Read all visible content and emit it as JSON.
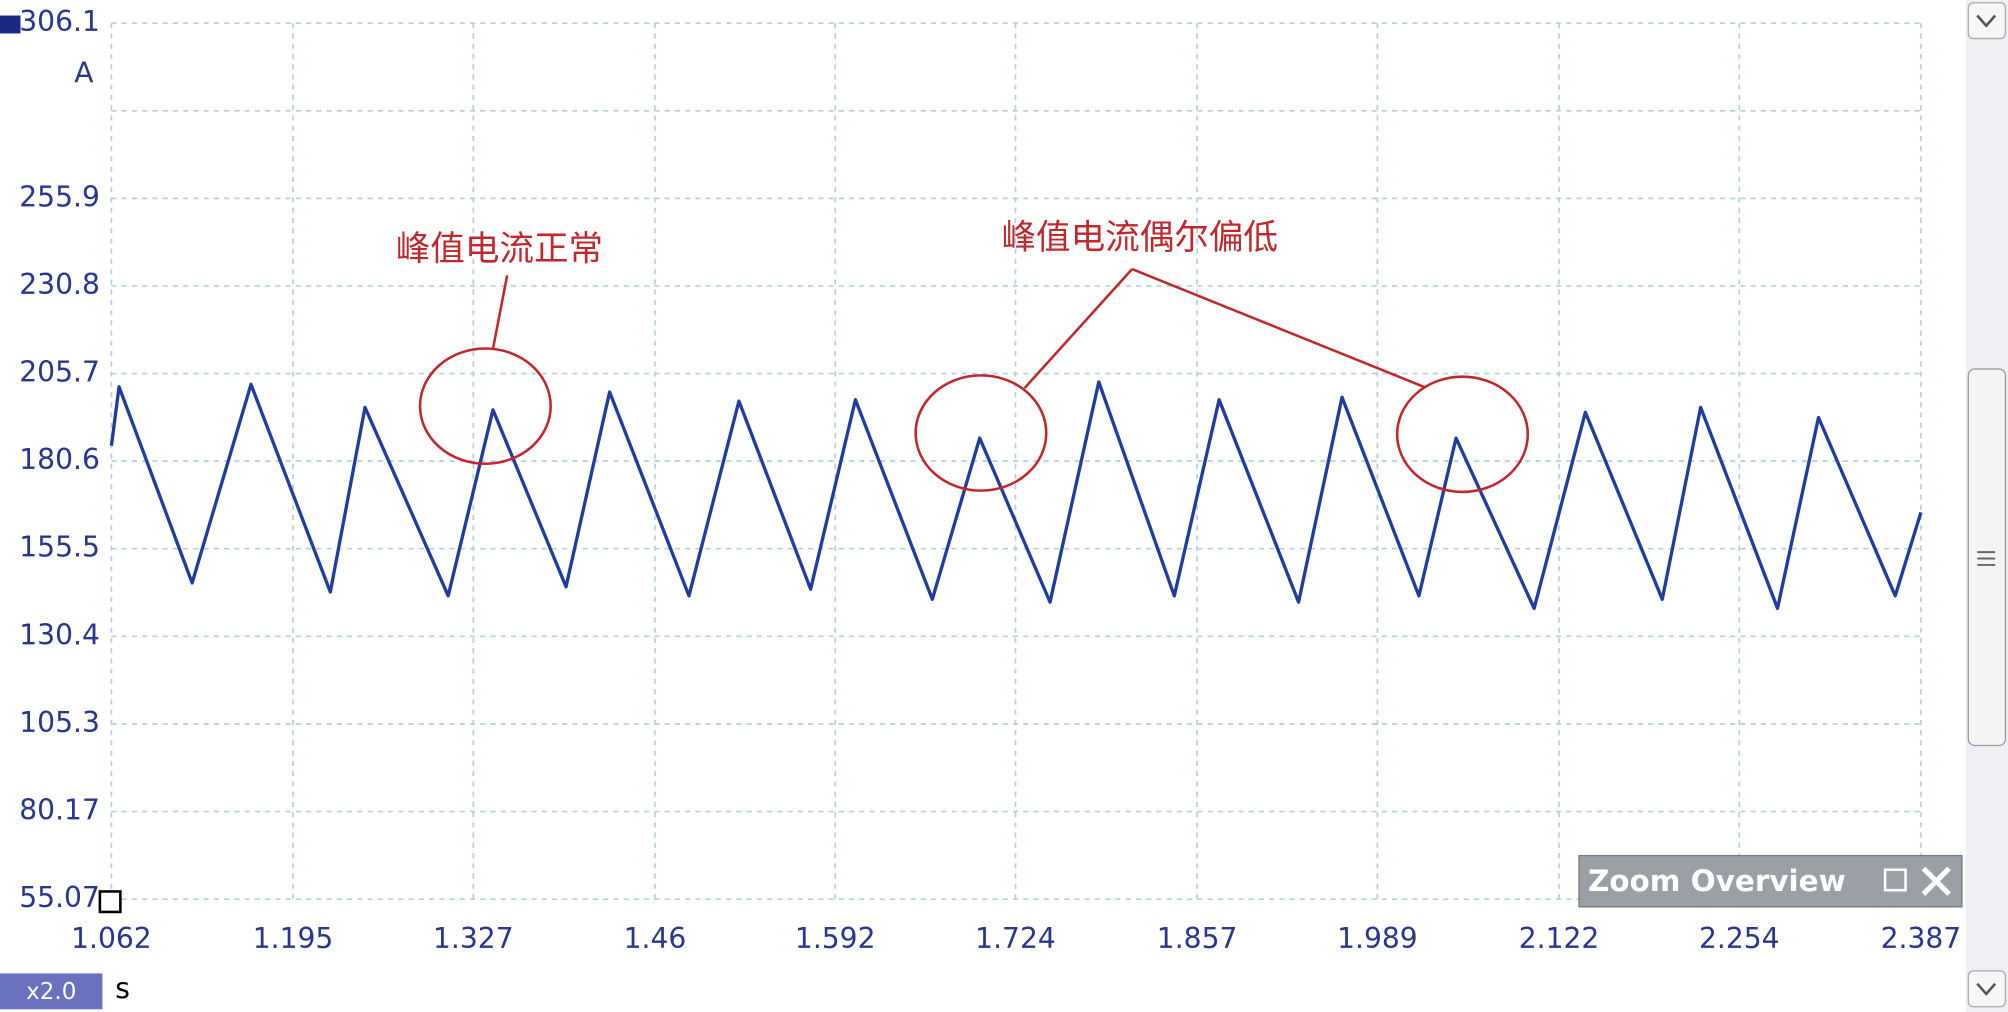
{
  "chart_data": {
    "type": "line",
    "x_label": "s",
    "y_label": "A",
    "x": [
      1.062,
      1.0676,
      1.1211,
      1.1642,
      1.2223,
      1.2477,
      1.3086,
      1.3414,
      1.3949,
      1.4268,
      1.4849,
      1.5215,
      1.574,
      1.6068,
      1.6631,
      1.6978,
      1.7493,
      1.785,
      1.8403,
      1.8731,
      1.9313,
      1.9631,
      2.0194,
      2.0466,
      2.1038,
      2.1413,
      2.1976,
      2.2257,
      2.282,
      2.312,
      2.3682,
      2.387
    ],
    "values": [
      185.0,
      201.9,
      145.7,
      202.6,
      143.1,
      196.0,
      142.0,
      195.3,
      144.6,
      200.4,
      142.0,
      197.8,
      143.9,
      198.2,
      141.0,
      187.2,
      140.2,
      203.3,
      142.0,
      198.2,
      140.2,
      198.9,
      142.0,
      187.2,
      138.4,
      194.6,
      141.0,
      196.0,
      138.4,
      193.1,
      142.0,
      165.9
    ],
    "color": "#1f3c9e",
    "xlim": [
      1.062,
      2.387
    ],
    "ylim": [
      55.07,
      306.1
    ],
    "xticks": [
      1.062,
      1.195,
      1.327,
      1.46,
      1.592,
      1.724,
      1.857,
      1.989,
      2.122,
      2.254,
      2.387
    ],
    "yticks": [
      55.07,
      80.17,
      105.3,
      130.4,
      155.5,
      180.6,
      205.7,
      230.8,
      255.9,
      {
        "value": 281.0,
        "label": null
      },
      306.1
    ],
    "grid": true,
    "annotations": [
      "峰值电流正常",
      "峰值电流偶尔偏低"
    ]
  },
  "ui": {
    "zoom_overview": "Zoom Overview",
    "zoom_factor": "x2.0"
  }
}
